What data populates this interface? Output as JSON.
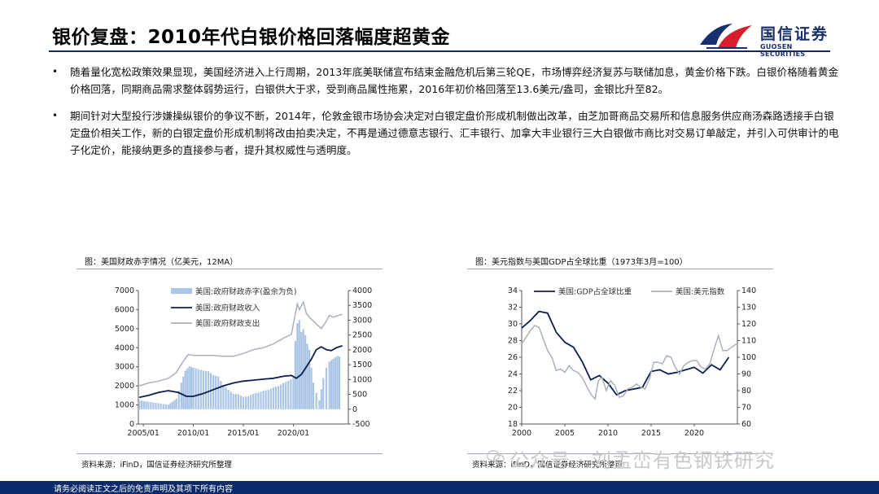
{
  "title": "银价复盘：2010年代白银价格回落幅度超黄金",
  "logo": {
    "cn": "国信证券",
    "en": "GUOSEN SECURITIES"
  },
  "bullets": [
    "随着量化宽松政策效果显现，美国经济进入上行周期，2013年底美联储宣布结束金融危机后第三轮QE，市场博弈经济复苏与联储加息，黄金价格下跌。白银价格随着黄金价格回落，同期商品需求整体弱势运行，白银供大于求，受到商品属性拖累，2016年初价格回落至13.6美元/盎司，金银比升至82。",
    "期间针对大型投行涉嫌操纵银价的争议不断，2014年，伦敦金银市场协会决定对白银定盘价形成机制做出改革，由芝加哥商品交易所和信息服务供应商汤森路透接手白银定盘价相关工作，新的白银定盘价形成机制将改由拍卖决定，不再是通过德意志银行、汇丰银行、加拿大丰业银行三大白银做市商比对交易订单敲定，并引入可供审计的电子化定价，能接纳更多的直接参与者，提升其权威性与透明度。"
  ],
  "charts": {
    "left": {
      "caption": "图：美国财政赤字情况（亿美元，12MA）",
      "source": "资料来源：iFinD，国信证券经济研究所整理"
    },
    "right": {
      "caption": "图：美元指数与美国GDP占全球比重（1973年3月=100）",
      "source": "资料来源：iFinD，国信证券经济研究所整理"
    }
  },
  "chart_data": [
    {
      "type": "bar",
      "title": "图：美国财政赤字情况（亿美元，12MA）",
      "x_ticks": [
        "2005/01",
        "2010/01",
        "2015/01",
        "2020/01"
      ],
      "x_range": [
        2004.5,
        2025.5
      ],
      "y_left": {
        "ticks": [
          0,
          1000,
          2000,
          3000,
          4000,
          5000,
          6000,
          7000
        ],
        "range": [
          0,
          7000
        ]
      },
      "y_right": {
        "ticks": [
          -500,
          0,
          500,
          1000,
          1500,
          2000,
          2500,
          3000,
          3500,
          4000
        ],
        "range": [
          -500,
          4000
        ]
      },
      "legend_position": "top-left",
      "series": [
        {
          "name": "美国:政府财政赤字(盈余为负)",
          "kind": "bar",
          "axis": "right",
          "color": "#a9c4e4",
          "x": [
            2004.6,
            2005.5,
            2006.5,
            2007.5,
            2008.3,
            2008.8,
            2009.2,
            2009.6,
            2010.0,
            2010.5,
            2011.0,
            2011.5,
            2012.0,
            2012.5,
            2013.0,
            2013.5,
            2014.0,
            2014.5,
            2015.0,
            2015.5,
            2016.0,
            2016.5,
            2017.0,
            2017.5,
            2018.0,
            2018.5,
            2019.0,
            2019.5,
            2020.0,
            2020.2,
            2020.4,
            2020.6,
            2020.8,
            2021.0,
            2021.2,
            2021.4,
            2021.6,
            2021.8,
            2022.0,
            2022.3,
            2022.6,
            2023.0,
            2023.3,
            2023.6,
            2024.0,
            2024.4,
            2024.8
          ],
          "y": [
            300,
            250,
            200,
            150,
            350,
            900,
            1300,
            1450,
            1400,
            1350,
            1300,
            1280,
            1150,
            1100,
            800,
            650,
            520,
            500,
            420,
            430,
            520,
            560,
            620,
            650,
            740,
            780,
            880,
            960,
            1050,
            2300,
            2900,
            3000,
            2600,
            2700,
            2500,
            2200,
            2000,
            1400,
            900,
            550,
            300,
            1050,
            1400,
            1600,
            1700,
            1800,
            1750
          ]
        },
        {
          "name": "美国:政府财政收入",
          "kind": "line",
          "axis": "left",
          "color": "#0b1f4f",
          "x": [
            2004.6,
            2005.5,
            2006.5,
            2007.5,
            2008.5,
            2009.3,
            2010.0,
            2011.0,
            2012.0,
            2013.0,
            2014.0,
            2015.0,
            2016.0,
            2017.0,
            2018.0,
            2019.0,
            2019.8,
            2020.3,
            2020.8,
            2021.3,
            2021.8,
            2022.3,
            2022.8,
            2023.3,
            2023.8,
            2024.3,
            2024.9
          ],
          "y": [
            1400,
            1500,
            1650,
            1750,
            1650,
            1450,
            1450,
            1600,
            1800,
            2000,
            2150,
            2250,
            2300,
            2350,
            2400,
            2500,
            2550,
            2400,
            2600,
            3000,
            3400,
            3900,
            4050,
            3900,
            3850,
            4000,
            4100
          ]
        },
        {
          "name": "美国:政府财政支出",
          "kind": "line",
          "axis": "left",
          "color": "#a8b0be",
          "x": [
            2004.6,
            2005.5,
            2006.5,
            2007.5,
            2008.3,
            2009.0,
            2009.5,
            2010.0,
            2011.0,
            2012.0,
            2013.0,
            2014.0,
            2015.0,
            2016.0,
            2017.0,
            2018.0,
            2019.0,
            2019.8,
            2020.2,
            2020.4,
            2020.6,
            2021.0,
            2021.3,
            2021.6,
            2022.0,
            2022.4,
            2022.8,
            2023.2,
            2023.6,
            2024.0,
            2024.5,
            2024.9
          ],
          "y": [
            2000,
            2150,
            2250,
            2400,
            2700,
            3300,
            3650,
            3600,
            3600,
            3600,
            3550,
            3550,
            3700,
            3900,
            4000,
            4200,
            4500,
            4700,
            5800,
            6300,
            6000,
            6400,
            5800,
            5600,
            5400,
            5200,
            5000,
            5300,
            5700,
            5600,
            5700,
            5750
          ]
        }
      ]
    },
    {
      "type": "line",
      "title": "图：美元指数与美国GDP占全球比重（1973年3月=100）",
      "x_ticks": [
        2000,
        2005,
        2010,
        2015,
        2020
      ],
      "x_range": [
        2000,
        2025
      ],
      "y_left": {
        "ticks": [
          18,
          20,
          22,
          24,
          26,
          28,
          30,
          32,
          34
        ],
        "range": [
          18,
          34
        ]
      },
      "y_right": {
        "ticks": [
          60,
          70,
          80,
          90,
          100,
          110,
          120,
          130,
          140
        ],
        "range": [
          60,
          140
        ]
      },
      "legend_position": "top",
      "series": [
        {
          "name": "美国:GDP占全球比重",
          "axis": "left",
          "color": "#0b1f4f",
          "x": [
            2000,
            2001,
            2002,
            2003,
            2004,
            2005,
            2006,
            2007,
            2008,
            2009,
            2010,
            2011,
            2012,
            2013,
            2014,
            2015,
            2016,
            2017,
            2018,
            2019,
            2020,
            2021,
            2022,
            2023,
            2024
          ],
          "y": [
            29.5,
            30.4,
            31.5,
            31.3,
            29.0,
            27.8,
            27.2,
            25.5,
            23.3,
            23.8,
            22.9,
            21.5,
            22.0,
            22.2,
            22.4,
            24.3,
            24.5,
            24.0,
            24.2,
            24.5,
            24.8,
            24.1,
            25.1,
            24.5,
            26.0
          ]
        },
        {
          "name": "美国:美元指数",
          "axis": "right",
          "color": "#a8b0be",
          "x": [
            2000,
            2000.5,
            2001,
            2001.5,
            2002,
            2002.5,
            2003,
            2003.5,
            2004,
            2004.5,
            2005,
            2005.5,
            2006,
            2006.5,
            2007,
            2007.5,
            2008,
            2008.5,
            2008.9,
            2009.3,
            2009.8,
            2010.3,
            2010.8,
            2011.3,
            2011.8,
            2012.3,
            2012.8,
            2013.3,
            2013.8,
            2014.3,
            2014.8,
            2015.3,
            2015.8,
            2016.3,
            2016.8,
            2017.3,
            2017.8,
            2018.3,
            2018.8,
            2019.3,
            2019.8,
            2020.3,
            2020.8,
            2021.3,
            2021.8,
            2022.3,
            2022.8,
            2023.3,
            2023.8,
            2024.3,
            2024.9
          ],
          "y": [
            108,
            112,
            116,
            119,
            118,
            111,
            104,
            100,
            92,
            93,
            91,
            95,
            92,
            91,
            88,
            83,
            78,
            75,
            86,
            88,
            80,
            86,
            83,
            76,
            77,
            81,
            82,
            84,
            82,
            81,
            87,
            97,
            97,
            96,
            101,
            100,
            94,
            90,
            95,
            97,
            98,
            98,
            94,
            93,
            96,
            105,
            113,
            104,
            104,
            106,
            108
          ]
        }
      ]
    }
  ],
  "watermark": "公众号 · 刘孟峦有色钢铁研究",
  "footer": "请务必阅读正文之后的免责声明及其项下所有内容"
}
